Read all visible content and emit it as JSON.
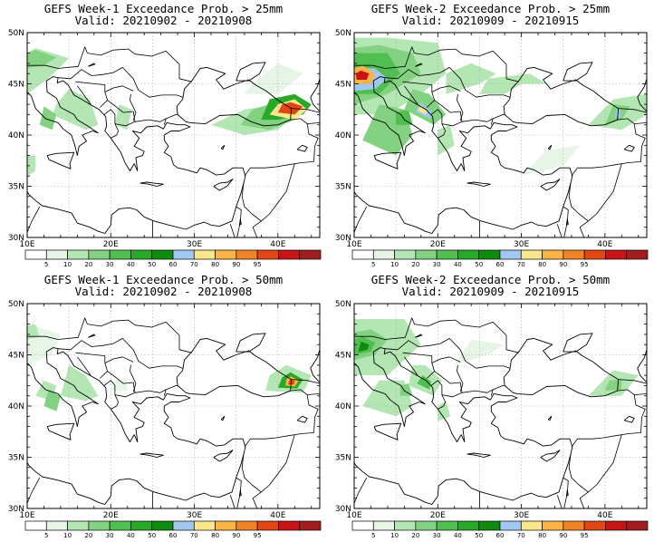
{
  "panels": [
    {
      "title": "GEFS Week-1 Exceedance Prob. > 25mm",
      "valid": "Valid: 20210902 - 20210908"
    },
    {
      "title": "GEFS Week-2 Exceedance Prob. > 25mm",
      "valid": "Valid: 20210909 - 20210915"
    },
    {
      "title": "GEFS Week-1 Exceedance Prob. > 50mm",
      "valid": "Valid: 20210902 - 20210908"
    },
    {
      "title": "GEFS Week-2 Exceedance Prob. > 50mm",
      "valid": "Valid: 20210909 - 20210915"
    }
  ],
  "lat_labels": [
    "30N",
    "35N",
    "40N",
    "45N",
    "50N"
  ],
  "lon_labels": [
    "10E",
    "20E",
    "30E",
    "40E"
  ],
  "colorbar": {
    "colors": [
      "#ffffff",
      "#e6f5e6",
      "#b4e6b4",
      "#82d282",
      "#50be50",
      "#28aa28",
      "#0f8c0f",
      "#a0c8f0",
      "#fae68c",
      "#fab446",
      "#f08228",
      "#e14614",
      "#c81414",
      "#a01e1e"
    ],
    "labels": [
      "5",
      "10",
      "20",
      "30",
      "40",
      "50",
      "60",
      "70",
      "80",
      "90",
      "95"
    ]
  }
}
